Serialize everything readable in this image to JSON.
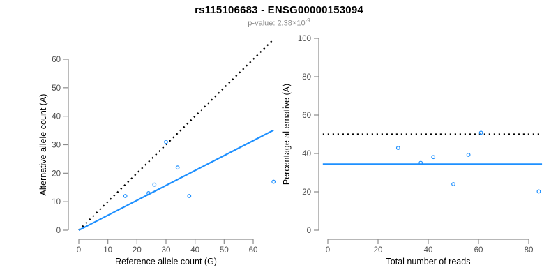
{
  "header": {
    "title": "rs115106683 - ENSG00000153094",
    "subtitle_label": "p-value: ",
    "subtitle_base": "2.38×10",
    "subtitle_exponent": "-9"
  },
  "colors": {
    "accent_blue": "#1E90FF",
    "dotted_black": "#000000",
    "axis_line": "#8c8c8c",
    "tick_label": "#4d4d4d",
    "axis_title": "#000000",
    "subtitle_gray": "#8c8c8c",
    "background": "#ffffff"
  },
  "chart_data": [
    {
      "type": "scatter",
      "name": "allele-counts-panel",
      "xlabel": "Reference allele count (G)",
      "ylabel": "Alternative allele count (A)",
      "xlim": [
        0,
        67
      ],
      "ylim": [
        0,
        67
      ],
      "xticks": [
        0,
        10,
        20,
        30,
        40,
        50,
        60
      ],
      "yticks": [
        0,
        10,
        20,
        30,
        40,
        50,
        60
      ],
      "grid": false,
      "legend": "none",
      "marker": "open-circle",
      "points": [
        [
          16,
          12
        ],
        [
          24,
          13
        ],
        [
          26,
          16
        ],
        [
          30,
          31
        ],
        [
          34,
          22
        ],
        [
          38,
          12
        ],
        [
          67,
          17
        ]
      ],
      "lines": [
        {
          "name": "identity-line",
          "style": "dotted",
          "color": "#000000",
          "x1": 0,
          "y1": 0,
          "x2": 66.4,
          "y2": 66.4
        },
        {
          "name": "regression-line",
          "style": "solid",
          "color": "#1E90FF",
          "x1": 0,
          "y1": 0,
          "x2": 67,
          "y2": 35.1
        }
      ]
    },
    {
      "type": "scatter",
      "name": "percentage-panel",
      "xlabel": "Total number of reads",
      "ylabel": "Percentage alternative (A)",
      "xlim": [
        0,
        85.3
      ],
      "ylim": [
        0,
        100
      ],
      "xticks": [
        0,
        20,
        40,
        60,
        80
      ],
      "yticks": [
        0,
        20,
        40,
        60,
        80,
        100
      ],
      "grid": false,
      "legend": "none",
      "marker": "open-circle",
      "points": [
        [
          28,
          42.9
        ],
        [
          37,
          35.1
        ],
        [
          42,
          38.1
        ],
        [
          50,
          24.0
        ],
        [
          56,
          39.3
        ],
        [
          61,
          50.8
        ],
        [
          84,
          20.2
        ]
      ],
      "lines": [
        {
          "name": "expected-50-percent-line",
          "style": "dotted",
          "color": "#000000",
          "x1": -2,
          "y1": 50,
          "x2": 85.3,
          "y2": 50
        },
        {
          "name": "mean-percentage-line",
          "style": "solid",
          "color": "#1E90FF",
          "x1": -2,
          "y1": 34.4,
          "x2": 85.3,
          "y2": 34.4
        }
      ]
    }
  ]
}
